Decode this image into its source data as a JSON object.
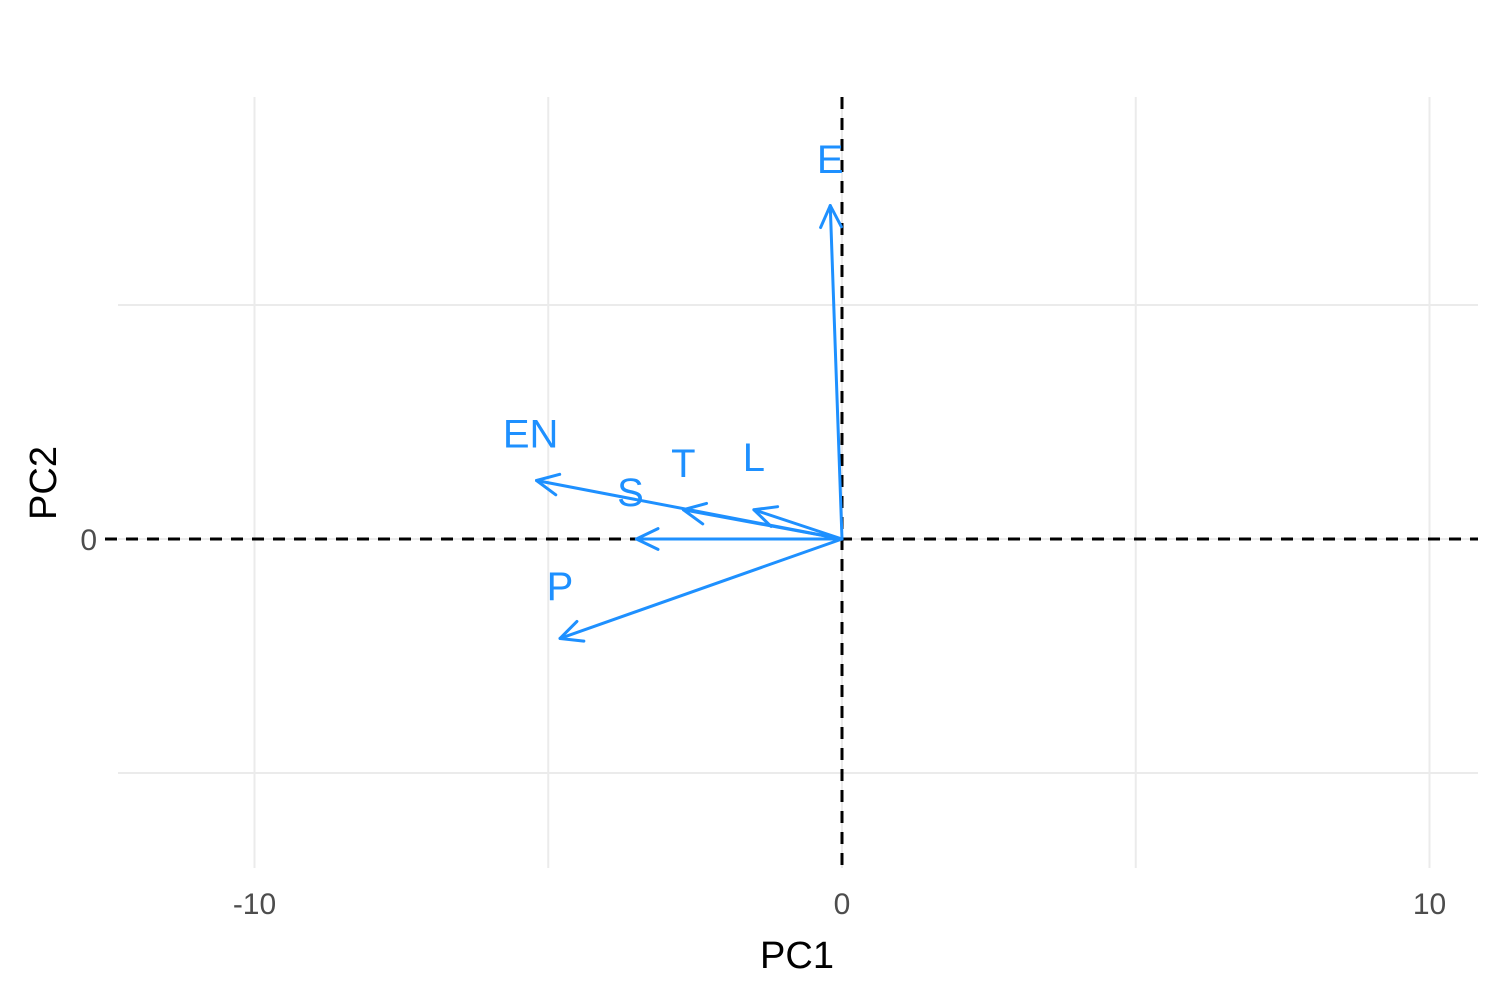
{
  "chart_data": {
    "type": "scatter",
    "subtype": "pca-variable-loadings",
    "title": "",
    "xlabel": "PC1",
    "ylabel": "PC2",
    "xlim": [
      -10.0,
      10.2
    ],
    "ylim": [
      -5.7,
      7.0
    ],
    "x_ticks": [
      -10,
      0,
      10
    ],
    "y_ticks": [
      0
    ],
    "grid": true,
    "reference_lines": {
      "x": 0,
      "y": 0,
      "style": "dashed"
    },
    "arrow_color": "#1E90FF",
    "variables": [
      {
        "name": "E",
        "x": -0.2,
        "y": 5.7,
        "label_x": -0.2,
        "label_y": 6.5
      },
      {
        "name": "EN",
        "x": -5.2,
        "y": 1.0,
        "label_x": -5.3,
        "label_y": 1.8
      },
      {
        "name": "S",
        "x": -3.5,
        "y": 0.0,
        "label_x": -3.6,
        "label_y": 0.8
      },
      {
        "name": "T",
        "x": -2.7,
        "y": 0.5,
        "label_x": -2.7,
        "label_y": 1.3
      },
      {
        "name": "L",
        "x": -1.5,
        "y": 0.5,
        "label_x": -1.5,
        "label_y": 1.4
      },
      {
        "name": "P",
        "x": -4.8,
        "y": -1.7,
        "label_x": -4.8,
        "label_y": -0.8
      }
    ]
  }
}
